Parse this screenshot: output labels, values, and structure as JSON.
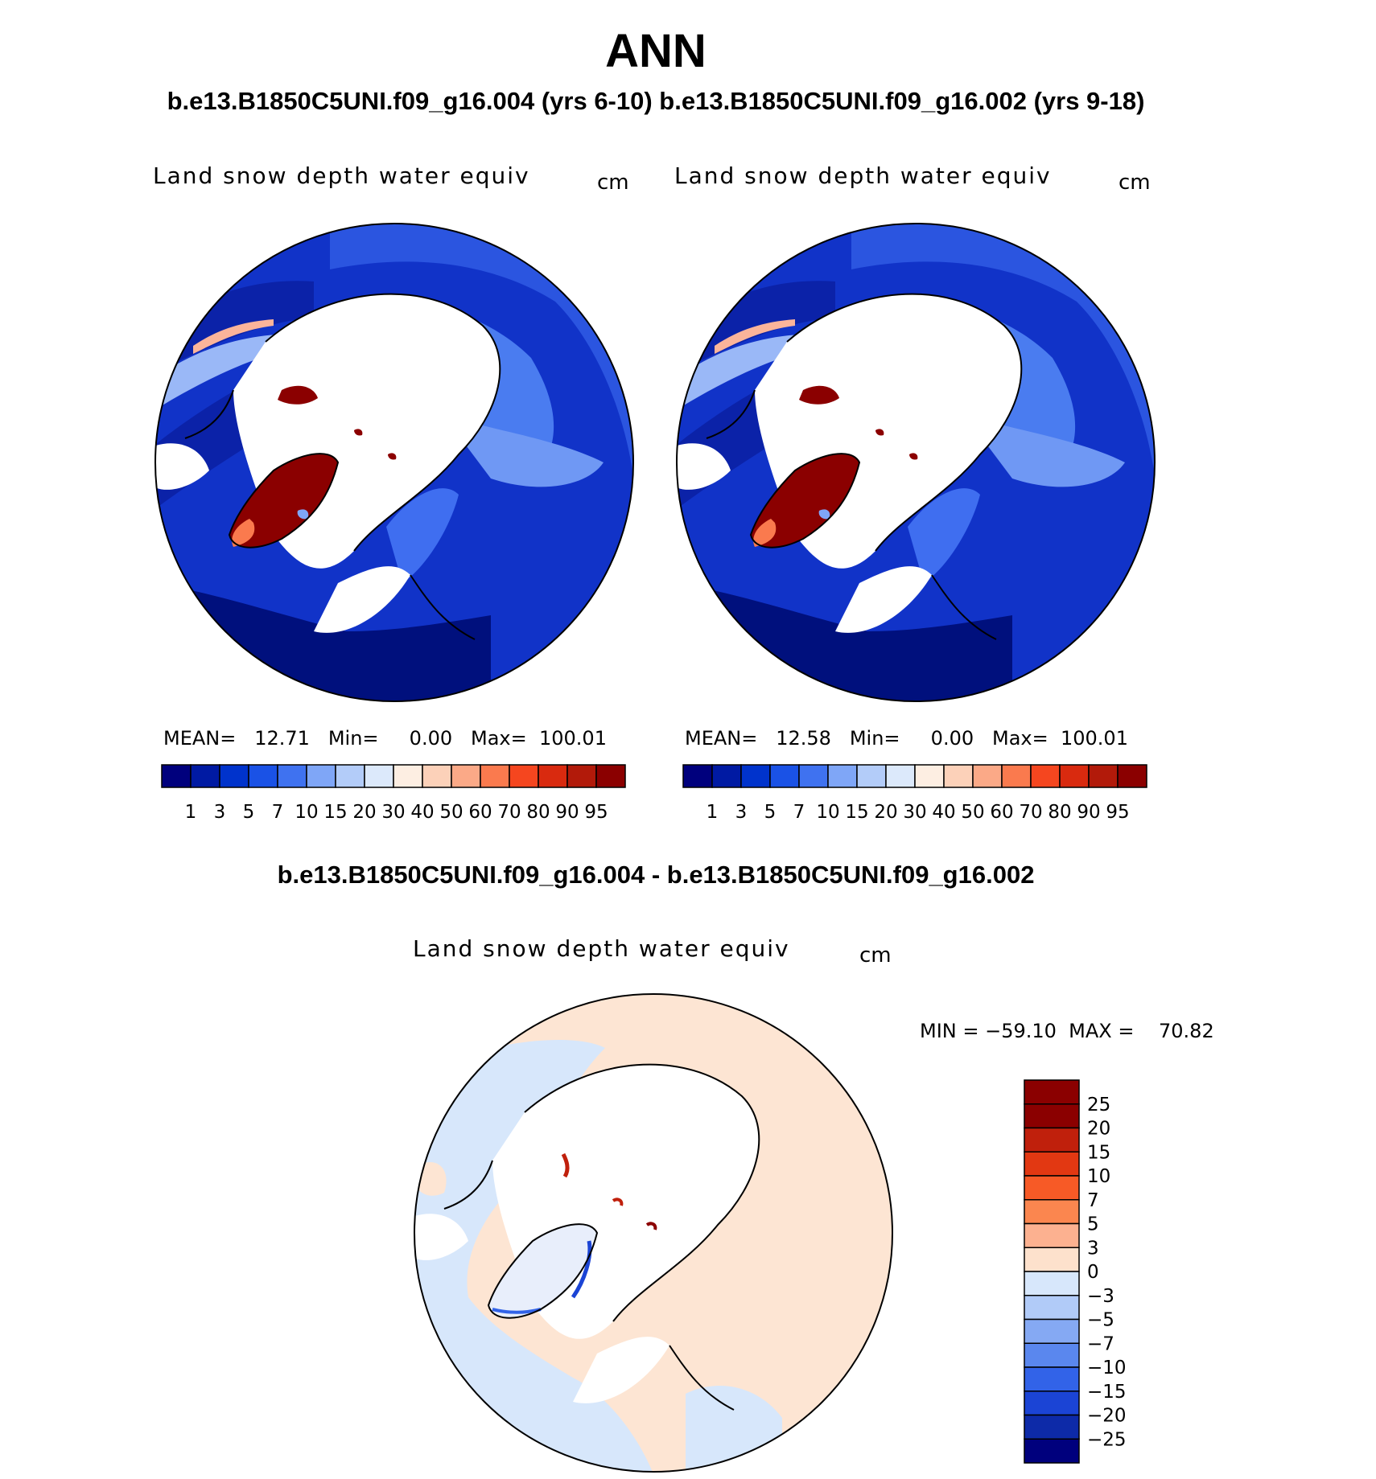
{
  "title": "ANN",
  "subtitle": "b.e13.B1850C5UNI.f09_g16.004 (yrs 6-10) b.e13.B1850C5UNI.f09_g16.002 (yrs 9-18)",
  "diff_title": "b.e13.B1850C5UNI.f09_g16.004 - b.e13.B1850C5UNI.f09_g16.002",
  "panels": [
    {
      "variable": "Land snow depth water equiv",
      "units": "cm",
      "stats": "MEAN=   12.71   Min=     0.00   Max=  100.01"
    },
    {
      "variable": "Land snow depth water equiv",
      "units": "cm",
      "stats": "MEAN=   12.58   Min=     0.00   Max=  100.01"
    }
  ],
  "diff_panel": {
    "variable": "Land snow depth water equiv",
    "units": "cm",
    "stats": "MIN = −59.10  MAX =    70.82"
  },
  "colorbar_levels": {
    "labels": [
      "1",
      "3",
      "5",
      "7",
      "10",
      "15",
      "20",
      "30",
      "40",
      "50",
      "60",
      "70",
      "80",
      "90",
      "95"
    ],
    "colors": [
      "#00007d",
      "#001aa3",
      "#0033cc",
      "#1a52e6",
      "#3f72f0",
      "#7fa6f7",
      "#b3ccf9",
      "#dce9fb",
      "#fdeee2",
      "#fcd1b9",
      "#fba987",
      "#fa7a4e",
      "#f5461f",
      "#d92a0f",
      "#b21a0a",
      "#8b0000"
    ]
  },
  "colorbar_diff": {
    "labels": [
      "25",
      "20",
      "15",
      "10",
      "7",
      "5",
      "3",
      "0",
      "−3",
      "−5",
      "−7",
      "−10",
      "−15",
      "−20",
      "−25"
    ],
    "colors": [
      "#8b0000",
      "#c0200c",
      "#e23812",
      "#f75a26",
      "#fb864f",
      "#fcb190",
      "#fde1cc",
      "#d7e7fb",
      "#b1cbf8",
      "#85a9f3",
      "#5a87ee",
      "#3263e8",
      "#1b44d5",
      "#0d2aa8",
      "#00007d"
    ]
  }
}
